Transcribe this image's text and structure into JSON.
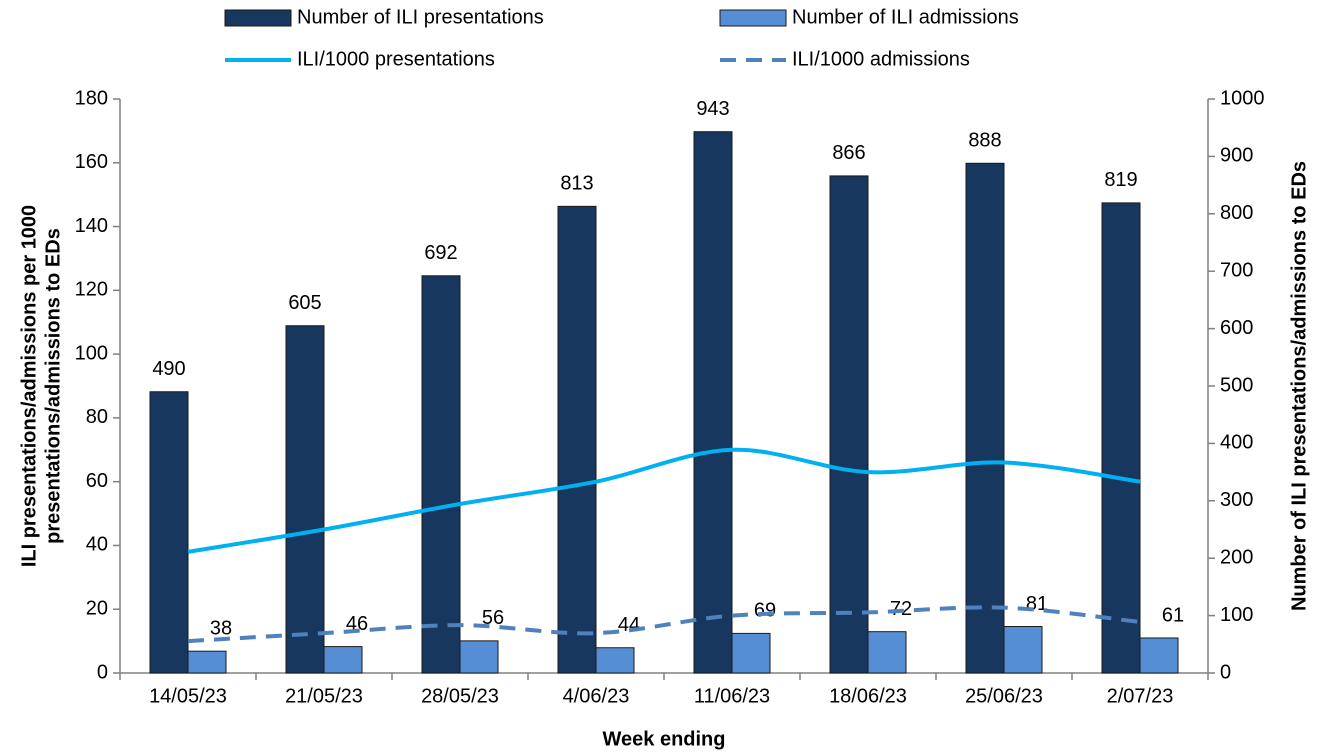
{
  "chart_data": {
    "type": "bar-line",
    "x_label": "Week ending",
    "y_label": [
      "ILI presentations/admissions  per 1000",
      "presentations/admissions to EDs"
    ],
    "y2_label": "Number of ILI presentations/admissions to EDs",
    "categories": [
      "14/05/23",
      "21/05/23",
      "28/05/23",
      "4/06/23",
      "11/06/23",
      "18/06/23",
      "25/06/23",
      "2/07/23"
    ],
    "series": [
      {
        "name": "Number of ILI presentations",
        "kind": "bar",
        "axis": "y2",
        "color": "#17375e",
        "values": [
          490,
          605,
          692,
          813,
          943,
          866,
          888,
          819
        ]
      },
      {
        "name": "Number of ILI admissions",
        "kind": "bar",
        "axis": "y2",
        "color": "#558ed5",
        "values": [
          38,
          46,
          56,
          44,
          69,
          72,
          81,
          61
        ]
      },
      {
        "name": "ILI/1000 presentations",
        "kind": "line",
        "color": "#00b0f0",
        "values": [
          38,
          45,
          53,
          60,
          70,
          63,
          66,
          60
        ]
      },
      {
        "name": "ILI/1000 admissions",
        "kind": "dashed-line",
        "color": "#4f81bd",
        "values": [
          10,
          12.5,
          15,
          12.5,
          18,
          19,
          20.5,
          16
        ]
      }
    ],
    "ylim": [
      0,
      180
    ],
    "yticks": [
      0,
      20,
      40,
      60,
      80,
      100,
      120,
      140,
      160,
      180
    ],
    "y2lim": [
      0,
      1000
    ],
    "y2ticks": [
      0,
      100,
      200,
      300,
      400,
      500,
      600,
      700,
      800,
      900,
      1000
    ],
    "grid": false
  }
}
